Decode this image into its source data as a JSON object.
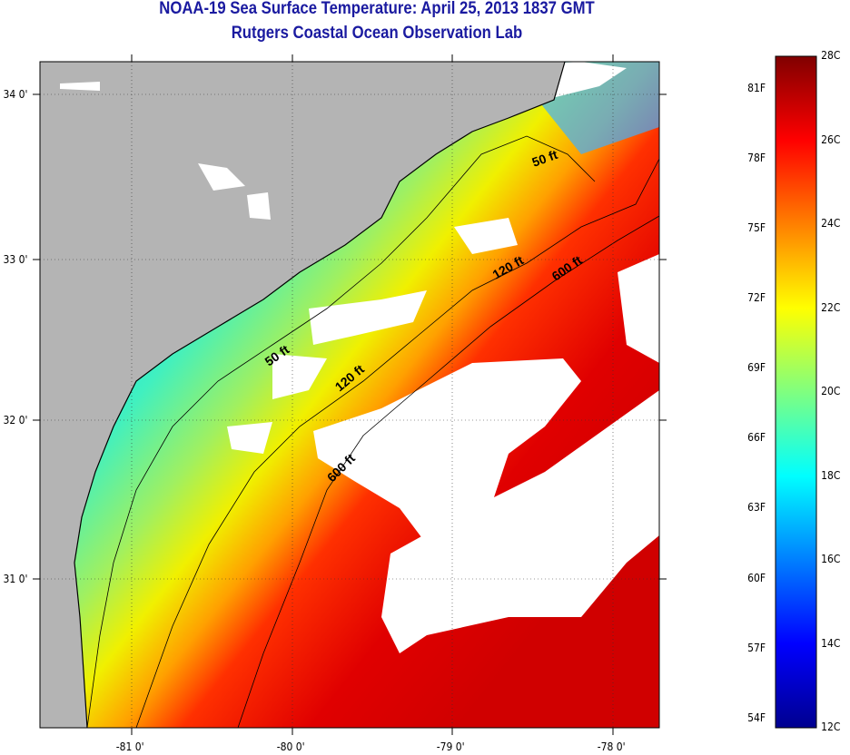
{
  "title": "NOAA-19 Sea Surface Temperature:  April 25, 2013 1837 GMT",
  "subtitle": "Rutgers Coastal Ocean Observation Lab",
  "map": {
    "lat_labels": [
      "34 0'",
      "33 0'",
      "32 0'",
      "31 0'"
    ],
    "lon_labels": [
      "-81 0'",
      "-80 0'",
      "-79 0'",
      "-78 0'"
    ],
    "contours": [
      {
        "label": "50 ft"
      },
      {
        "label": "120 ft"
      },
      {
        "label": "600 ft"
      },
      {
        "label": "50 ft"
      },
      {
        "label": "120 ft"
      },
      {
        "label": "600 ft"
      }
    ],
    "colors": {
      "land": "#b4b4b4",
      "cloud": "#ffffff"
    }
  },
  "colorbar": {
    "fahrenheit_labels": [
      "81F",
      "78F",
      "75F",
      "72F",
      "69F",
      "66F",
      "63F",
      "60F",
      "57F",
      "54F"
    ],
    "celsius_labels": [
      "28C",
      "26C",
      "24C",
      "22C",
      "20C",
      "18C",
      "16C",
      "14C",
      "12C"
    ],
    "range_c": [
      12,
      28
    ],
    "colormap": "jet"
  }
}
